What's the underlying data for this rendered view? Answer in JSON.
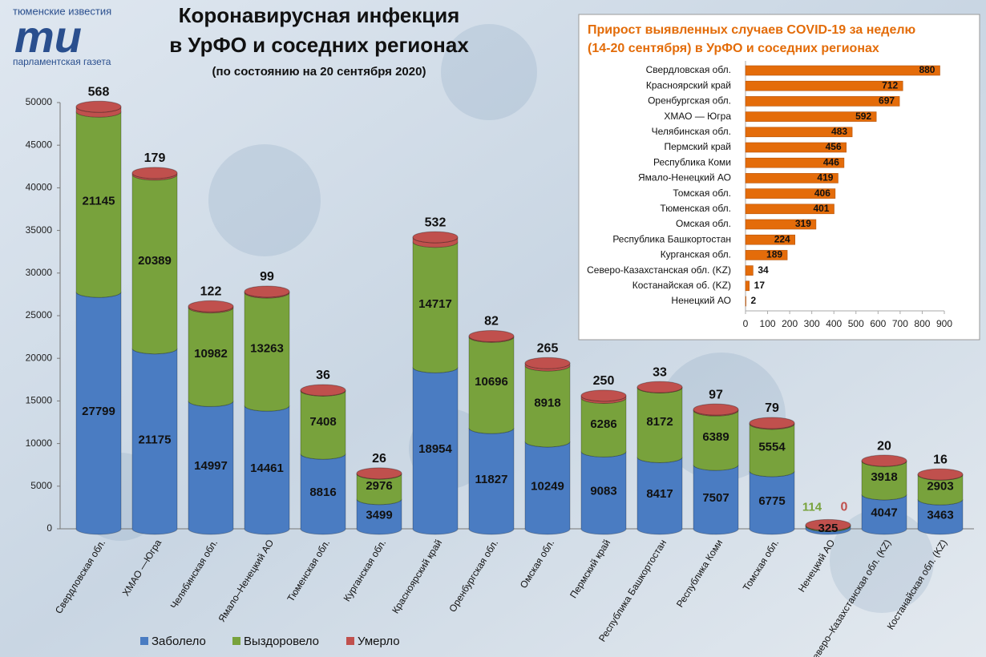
{
  "logo": {
    "top": "тюменские известия",
    "mark": "ти",
    "bottom": "парламентская газета"
  },
  "chart_data": [
    {
      "type": "bar",
      "title": [
        "Коронавирусная инфекция",
        "в УрФО и соседних регионах"
      ],
      "subtitle": "(по состоянию на 20 сентября 2020)",
      "categories": [
        "Свердловская обл.",
        "ХМАО —Югра",
        "Челябинская обл.",
        "Ямало–Ненецкий АО",
        "Тюменская обл.",
        "Курганская обл.",
        "Красноярский край",
        "Оренбургская обл.",
        "Омская обл.",
        "Пермский край",
        "Республика Башкортостан",
        "Республика Коми",
        "Томская обл.",
        "Ненецкий АО",
        "Северо–Казахстанская  обл. (KZ)",
        "Костанайская  обл. (KZ)"
      ],
      "series": [
        {
          "name": "Заболело",
          "color": "#4a7cc2",
          "values": [
            27799,
            21175,
            14997,
            14461,
            8816,
            3499,
            18954,
            11827,
            10249,
            9083,
            8417,
            7507,
            6775,
            325,
            4047,
            3463
          ]
        },
        {
          "name": "Выздоровело",
          "color": "#78a23c",
          "values": [
            21145,
            20389,
            10982,
            13263,
            7408,
            2976,
            14717,
            10696,
            8918,
            6286,
            8172,
            6389,
            5554,
            114,
            3918,
            2903
          ]
        },
        {
          "name": "Умерло",
          "color": "#c0504d",
          "values": [
            568,
            179,
            122,
            99,
            36,
            26,
            532,
            82,
            265,
            250,
            33,
            97,
            79,
            0,
            20,
            16
          ]
        }
      ],
      "ylim": [
        0,
        50000
      ],
      "yticks": [
        0,
        5000,
        10000,
        15000,
        20000,
        25000,
        30000,
        35000,
        40000,
        45000,
        50000
      ],
      "stacked": true
    },
    {
      "type": "barh",
      "title": [
        "Прирост выявленных случаев COVID-19 за неделю",
        "(14-20 сентября) в УрФО и соседних регионах"
      ],
      "categories": [
        "Свердловская обл.",
        "Красноярский край",
        "Оренбургская обл.",
        "ХМАО — Югра",
        "Челябинская обл.",
        "Пермский край",
        "Республика Коми",
        "Ямало-Ненецкий АО",
        "Томская обл.",
        "Тюменская обл.",
        "Омская обл.",
        "Республика Башкортостан",
        "Курганская обл.",
        "Северо-Казахстанская обл. (KZ)",
        "Костанайская об. (KZ)",
        "Ненецкий АО"
      ],
      "values": [
        880,
        712,
        697,
        592,
        483,
        456,
        446,
        419,
        406,
        401,
        319,
        224,
        189,
        34,
        17,
        2
      ],
      "color": "#e46c0a",
      "xlim": [
        0,
        900
      ],
      "xticks": [
        0,
        100,
        200,
        300,
        400,
        500,
        600,
        700,
        800,
        900
      ]
    }
  ]
}
